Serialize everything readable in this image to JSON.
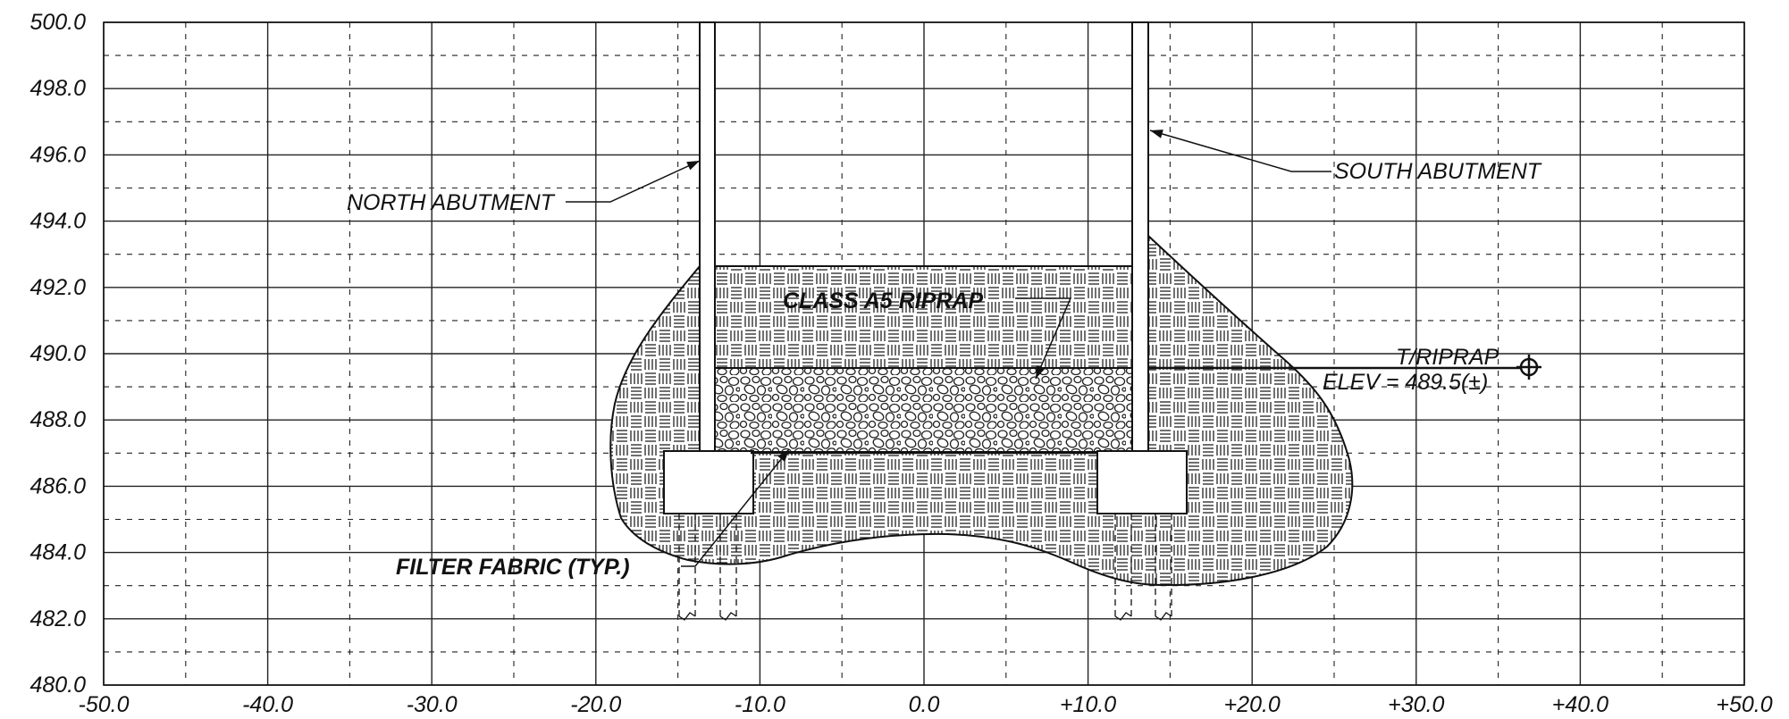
{
  "title": "",
  "axes": {
    "x": {
      "min": -50,
      "max": 50,
      "major_step": 10,
      "minor_step": 5,
      "tick_labels": [
        "-50.0",
        "-40.0",
        "-30.0",
        "-20.0",
        "-10.0",
        "0.0",
        "+10.0",
        "+20.0",
        "+30.0",
        "+40.0",
        "+50.0"
      ]
    },
    "y": {
      "min": 480,
      "max": 500,
      "major_step": 2,
      "minor_step": 1,
      "tick_labels": [
        "500.0",
        "498.0",
        "496.0",
        "494.0",
        "492.0",
        "490.0",
        "488.0",
        "486.0",
        "484.0",
        "482.0",
        "480.0"
      ]
    },
    "grid": {
      "major": "solid",
      "minor": "dashed"
    }
  },
  "labels": {
    "north_abutment": "NORTH ABUTMENT",
    "south_abutment": "SOUTH ABUTMENT",
    "riprap_class": "CLASS A5 RIPRAP",
    "filter_fabric": "FILTER FABRIC (TYP.)",
    "top_riprap": "T/RIPRAP",
    "top_riprap_elev": "ELEV = 489.5(±)"
  },
  "features": {
    "north_abutment_x": [
      -13.5,
      -12.5
    ],
    "south_abutment_x": [
      12.8,
      13.8
    ],
    "riprap_top_elev": 489.5,
    "riprap_bottom_elev": 487.0,
    "footing_elev_range": [
      485.0,
      487.0
    ]
  }
}
